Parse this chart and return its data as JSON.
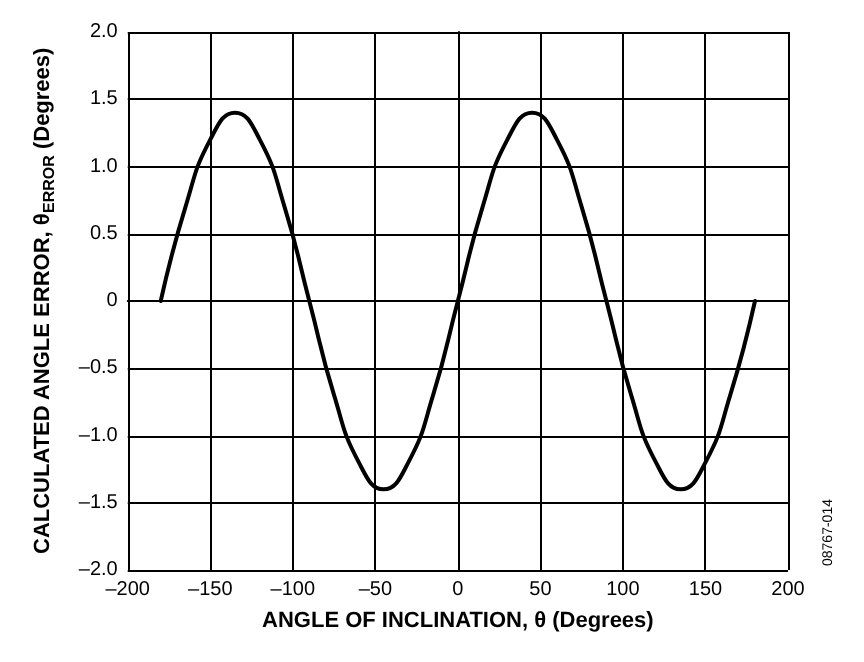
{
  "chart_data": {
    "type": "line",
    "xlabel": "ANGLE OF INCLINATION, θ (Degrees)",
    "ylabel": "CALCULATED ANGLE ERROR, θ$_{ERROR}$ (Degrees)",
    "annotations": [
      "08767-014"
    ],
    "x": [
      -180,
      -165,
      -150,
      -135,
      -120,
      -105,
      -90,
      -75,
      -60,
      -45,
      -30,
      -15,
      0,
      15,
      30,
      45,
      60,
      75,
      90,
      105,
      120,
      135,
      150,
      165,
      180
    ],
    "series": [
      {
        "color": "#000000",
        "values": [
          0,
          0.7,
          1.2,
          1.4,
          1.2,
          0.7,
          0,
          -0.7,
          -1.2,
          -1.4,
          -1.2,
          -0.7,
          0,
          0.7,
          1.2,
          1.4,
          1.2,
          0.7,
          0,
          -0.7,
          -1.2,
          -1.4,
          -1.2,
          -0.7,
          0
        ]
      }
    ],
    "xlim": [
      -200,
      200
    ],
    "xticks": [
      {
        "value": -200,
        "label": "–200"
      },
      {
        "value": -150,
        "label": "–150"
      },
      {
        "value": -100,
        "label": "–100"
      },
      {
        "value": -50,
        "label": "–50"
      },
      0,
      50,
      100,
      150,
      200
    ],
    "ylim": [
      -2,
      2
    ],
    "yticks": [
      {
        "value": -2,
        "label": "–2.0"
      },
      {
        "value": -1.5,
        "label": "–1.5"
      },
      {
        "value": -1,
        "label": "–1.0"
      },
      {
        "value": -0.5,
        "label": "–0.5"
      },
      {
        "value": 0,
        "label": "0"
      },
      {
        "value": 0.5,
        "label": "0.5"
      },
      {
        "value": 1,
        "label": "1.0"
      },
      {
        "value": 1.5,
        "label": "1.5"
      },
      {
        "value": 2,
        "label": "2.0"
      }
    ],
    "grid": true,
    "marker": "none",
    "line_style": "solid"
  }
}
